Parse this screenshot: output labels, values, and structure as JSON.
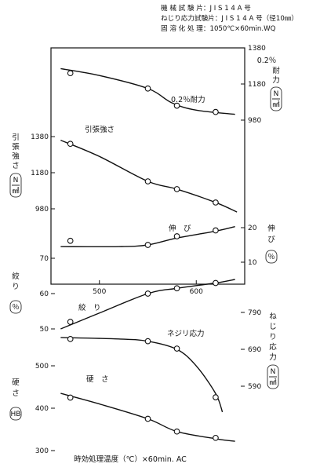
{
  "header": {
    "line1": "機 械 試 験 片：J I S 1 4 A 号",
    "line2": "ねじり応力試験片：J I S 1 4 A 号（径10㎜）",
    "line3": "固 溶 化 処 理：1050℃×60min.WQ"
  },
  "chart_data": {
    "type": "line",
    "xlabel": "時効処理温度（℃）×60min. AC",
    "xlim": [
      450,
      650
    ],
    "x_ticks": [
      "500",
      "600"
    ],
    "grid": false,
    "axes": {
      "left": [
        {
          "name": "引張強さ",
          "unit": "N/㎟",
          "label_chars": [
            "引",
            "張",
            "強",
            "さ"
          ],
          "unit_top": "N",
          "unit_bottom": "㎟",
          "ticks": [
            "1380",
            "1180",
            "980"
          ]
        },
        {
          "name": "絞り",
          "unit": "％",
          "label_chars": [
            "絞",
            "り"
          ],
          "unit_text": "％",
          "ticks": [
            "70",
            "60",
            "50"
          ]
        },
        {
          "name": "硬さ",
          "unit": "HB",
          "label_chars": [
            "硬",
            "さ"
          ],
          "unit_text": "HB",
          "ticks": [
            "500",
            "400",
            "300"
          ]
        }
      ],
      "right": [
        {
          "name": "0.2％耐力",
          "unit": "N/㎟",
          "label_lines": [
            "0.2％",
            "耐",
            "力"
          ],
          "unit_top": "N",
          "unit_bottom": "㎟",
          "ticks": [
            "1380",
            "1180",
            "980"
          ]
        },
        {
          "name": "伸び",
          "unit": "％",
          "label_chars": [
            "伸",
            "び"
          ],
          "unit_text": "％",
          "ticks": [
            "20",
            "10"
          ]
        },
        {
          "name": "ねじり応力",
          "unit": "N/㎟",
          "label_chars": [
            "ね",
            "じ",
            "り",
            "応",
            "力"
          ],
          "unit_top": "N",
          "unit_bottom": "㎟",
          "ticks": [
            "790",
            "690",
            "590"
          ]
        }
      ]
    },
    "series": [
      {
        "label": "0.2％耐力",
        "axis": "0.2％耐力",
        "points": [
          [
            470,
            1240
          ],
          [
            550,
            1155
          ],
          [
            580,
            1060
          ],
          [
            620,
            1025
          ]
        ],
        "curve": [
          [
            460,
            1265
          ],
          [
            500,
            1227
          ],
          [
            550,
            1155
          ],
          [
            575,
            1075
          ],
          [
            600,
            1035
          ],
          [
            640,
            1012
          ]
        ]
      },
      {
        "label": "引張強さ",
        "axis": "引張強さ",
        "points": [
          [
            470,
            1340
          ],
          [
            550,
            1132
          ],
          [
            580,
            1089
          ],
          [
            620,
            1015
          ]
        ],
        "curve": [
          [
            460,
            1360
          ],
          [
            500,
            1270
          ],
          [
            550,
            1132
          ],
          [
            580,
            1089
          ],
          [
            620,
            1015
          ],
          [
            642,
            962
          ]
        ]
      },
      {
        "label": "伸　び",
        "axis": "伸び",
        "points": [
          [
            470,
            16.2
          ],
          [
            550,
            15
          ],
          [
            580,
            17.5
          ],
          [
            620,
            19.2
          ]
        ],
        "curve": [
          [
            460,
            14.5
          ],
          [
            520,
            14.5
          ],
          [
            550,
            15
          ],
          [
            580,
            17
          ],
          [
            620,
            19
          ],
          [
            640,
            20.3
          ]
        ]
      },
      {
        "label": "絞　り",
        "axis": "絞り",
        "points": [
          [
            470,
            52
          ],
          [
            550,
            60
          ],
          [
            580,
            61.5
          ],
          [
            620,
            63
          ]
        ],
        "curve": [
          [
            460,
            50
          ],
          [
            500,
            54.5
          ],
          [
            550,
            60
          ],
          [
            580,
            61.5
          ],
          [
            620,
            63
          ],
          [
            640,
            64
          ]
        ]
      },
      {
        "label": "ネジリ応力",
        "axis": "ねじり応力",
        "points": [
          [
            470,
            718
          ],
          [
            550,
            712
          ],
          [
            580,
            692
          ],
          [
            620,
            560
          ]
        ],
        "curve": [
          [
            460,
            722
          ],
          [
            520,
            718
          ],
          [
            550,
            712
          ],
          [
            580,
            690
          ],
          [
            600,
            645
          ],
          [
            620,
            570
          ],
          [
            627,
            520
          ]
        ]
      },
      {
        "label": "硬　さ",
        "axis": "硬さ",
        "points": [
          [
            470,
            425
          ],
          [
            550,
            375
          ],
          [
            580,
            345
          ],
          [
            620,
            330
          ]
        ],
        "curve": [
          [
            460,
            435
          ],
          [
            500,
            410
          ],
          [
            550,
            375
          ],
          [
            580,
            345
          ],
          [
            620,
            328
          ],
          [
            640,
            322
          ]
        ]
      }
    ]
  }
}
